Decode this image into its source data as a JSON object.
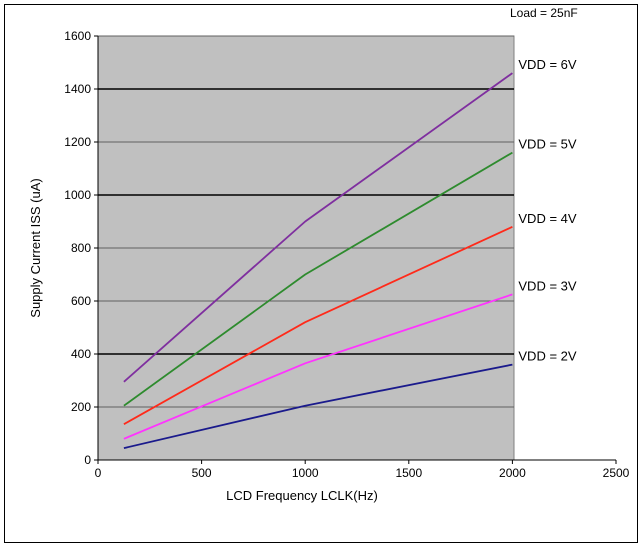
{
  "chart_data": {
    "type": "line",
    "title": "",
    "annotation": "Load = 25nF",
    "xlabel": "LCD Frequency LCLK(Hz)",
    "ylabel": "Supply Current ISS (uA)",
    "xlim": [
      0,
      2500
    ],
    "ylim": [
      0,
      1600
    ],
    "xticks": [
      0,
      500,
      1000,
      1500,
      2000,
      2500
    ],
    "yticks": [
      0,
      200,
      400,
      600,
      800,
      1000,
      1200,
      1400,
      1600
    ],
    "xtick_labels": [
      "0",
      "500",
      "1000",
      "1500",
      "2000",
      "2500"
    ],
    "ytick_labels": [
      "0",
      "200",
      "400",
      "600",
      "800",
      "1000",
      "1200",
      "1400",
      "1600"
    ],
    "grid": true,
    "plot_background": "#c0c0c0",
    "series": [
      {
        "name": "VDD = 6V",
        "color": "#7f2f9f",
        "x": [
          125,
          1000,
          2000
        ],
        "y": [
          295,
          900,
          1460
        ]
      },
      {
        "name": "VDD = 5V",
        "color": "#2e8b2e",
        "x": [
          125,
          1000,
          2000
        ],
        "y": [
          205,
          700,
          1160
        ]
      },
      {
        "name": "VDD = 4V",
        "color": "#ff2a1a",
        "x": [
          125,
          1000,
          2000
        ],
        "y": [
          135,
          520,
          880
        ]
      },
      {
        "name": "VDD = 3V",
        "color": "#ff33ff",
        "x": [
          125,
          1000,
          2000
        ],
        "y": [
          80,
          365,
          625
        ]
      },
      {
        "name": "VDD = 2V",
        "color": "#1a1a8c",
        "x": [
          125,
          1000,
          2000
        ],
        "y": [
          45,
          205,
          360
        ]
      }
    ]
  }
}
